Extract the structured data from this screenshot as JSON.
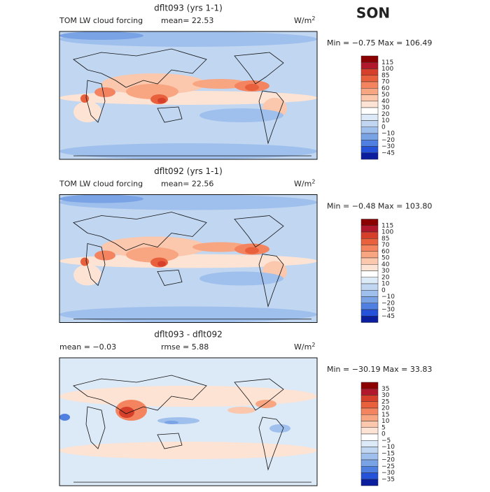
{
  "season": "SON",
  "panels": [
    {
      "title": "dflt093 (yrs 1-1)",
      "left_label": "TOM LW cloud forcing",
      "mid_label": "mean=  22.53",
      "units": "W/m",
      "units_sup": "2",
      "min_max": "Min =  −0.75 Max = 106.49",
      "levels": [
        "115",
        "100",
        "85",
        "70",
        "60",
        "50",
        "40",
        "30",
        "20",
        "10",
        "0",
        "−10",
        "−20",
        "−30",
        "−45"
      ],
      "colors": [
        "#8b0000",
        "#b2182b",
        "#d6402b",
        "#e8603c",
        "#f4845f",
        "#f8a582",
        "#fbc7ad",
        "#fde3d4",
        "#ffffff",
        "#dce9f7",
        "#c0d6f1",
        "#9fbfed",
        "#7aa3e6",
        "#4f7fe0",
        "#2552d8",
        "#0a1e9e"
      ]
    },
    {
      "title": "dflt092 (yrs 1-1)",
      "left_label": "TOM LW cloud forcing",
      "mid_label": "mean=  22.56",
      "units": "W/m",
      "units_sup": "2",
      "min_max": "Min =  −0.48 Max = 103.80",
      "levels": [
        "115",
        "100",
        "85",
        "70",
        "60",
        "50",
        "40",
        "30",
        "20",
        "10",
        "0",
        "−10",
        "−20",
        "−30",
        "−45"
      ],
      "colors": [
        "#8b0000",
        "#b2182b",
        "#d6402b",
        "#e8603c",
        "#f4845f",
        "#f8a582",
        "#fbc7ad",
        "#fde3d4",
        "#ffffff",
        "#dce9f7",
        "#c0d6f1",
        "#9fbfed",
        "#7aa3e6",
        "#4f7fe0",
        "#2552d8",
        "#0a1e9e"
      ]
    },
    {
      "title": "dflt093 - dflt092",
      "left_label": "mean =  −0.03",
      "mid_label": "rmse =   5.88",
      "units": "W/m",
      "units_sup": "2",
      "min_max": "Min = −30.19 Max =   33.83",
      "levels": [
        "35",
        "30",
        "25",
        "20",
        "15",
        "10",
        "5",
        "0",
        "−5",
        "−10",
        "−15",
        "−20",
        "−25",
        "−30",
        "−35"
      ],
      "colors": [
        "#8b0000",
        "#b2182b",
        "#d6402b",
        "#e8603c",
        "#f4845f",
        "#f8a582",
        "#fbc7ad",
        "#fde3d4",
        "#ffffff",
        "#dce9f7",
        "#c0d6f1",
        "#9fbfed",
        "#7aa3e6",
        "#4f7fe0",
        "#2552d8",
        "#0a1e9e"
      ]
    }
  ]
}
